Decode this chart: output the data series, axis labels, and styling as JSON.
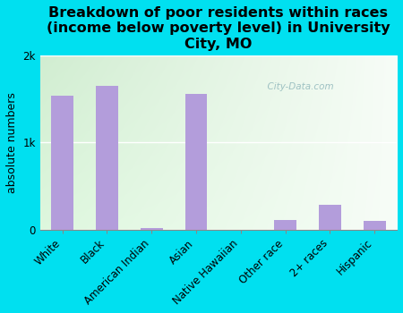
{
  "title": "Breakdown of poor residents within races\n(income below poverty level) in University\nCity, MO",
  "ylabel": "absolute numbers",
  "categories": [
    "White",
    "Black",
    "American Indian",
    "Asian",
    "Native Hawaiian",
    "Other race",
    "2+ races",
    "Hispanic"
  ],
  "values": [
    1540,
    1650,
    18,
    1560,
    0,
    105,
    280,
    100
  ],
  "bar_color": "#b39ddb",
  "background_outer": "#00e0f0",
  "ylim": [
    0,
    2000
  ],
  "ytick_labels": [
    "0",
    "1k",
    "2k"
  ],
  "ytick_vals": [
    0,
    1000,
    2000
  ],
  "watermark": "  City-Data.com",
  "title_fontsize": 11.5,
  "ylabel_fontsize": 9,
  "tick_fontsize": 8.5
}
